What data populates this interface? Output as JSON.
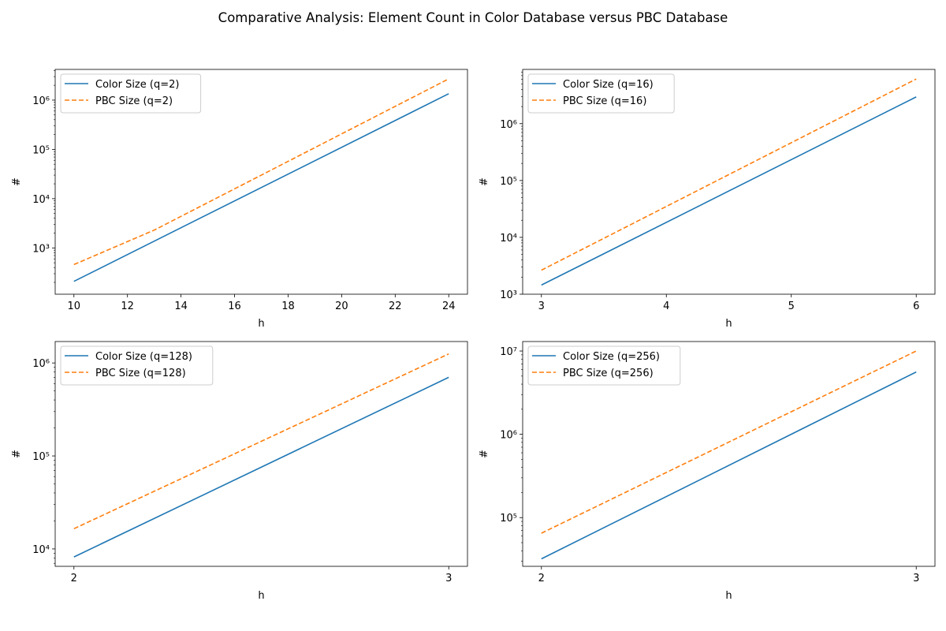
{
  "figure": {
    "title": "Comparative Analysis: Element Count in Color Database versus PBC Database"
  },
  "colors": {
    "color_series": "#1f77b4",
    "pbc_series": "#ff7f0e"
  },
  "chart_data": [
    {
      "type": "line",
      "xlabel": "h",
      "ylabel": "#",
      "yscale": "log",
      "xlim": [
        9.3,
        24.7
      ],
      "ylim": [
        115,
        4200000
      ],
      "xticks": [
        10,
        12,
        14,
        16,
        18,
        20,
        22,
        24
      ],
      "xtick_labels": [
        "10",
        "12",
        "14",
        "16",
        "18",
        "20",
        "22",
        "24"
      ],
      "yticks": [
        1000,
        10000,
        100000,
        1000000
      ],
      "ytick_labels": [
        "10³",
        "10⁴",
        "10⁵",
        "10⁶"
      ],
      "grid": false,
      "legend_position": "top-left",
      "series": [
        {
          "name": "Color Size (q=2)",
          "style": "solid",
          "x": [
            10,
            24
          ],
          "y": [
            210,
            1350000
          ]
        },
        {
          "name": "PBC Size (q=2)",
          "style": "dashed",
          "x": [
            10,
            13,
            24
          ],
          "y": [
            460,
            2300,
            2700000
          ]
        }
      ]
    },
    {
      "type": "line",
      "xlabel": "h",
      "ylabel": "#",
      "yscale": "log",
      "xlim": [
        2.85,
        6.15
      ],
      "ylim": [
        1000,
        9000000
      ],
      "xticks": [
        3,
        4,
        5,
        6
      ],
      "xtick_labels": [
        "3",
        "4",
        "5",
        "6"
      ],
      "yticks": [
        1000,
        10000,
        100000,
        1000000
      ],
      "ytick_labels": [
        "10³",
        "10⁴",
        "10⁵",
        "10⁶"
      ],
      "grid": false,
      "legend_position": "top-left",
      "series": [
        {
          "name": "Color Size (q=16)",
          "style": "solid",
          "x": [
            3,
            6
          ],
          "y": [
            1450,
            2950000
          ]
        },
        {
          "name": "PBC Size (q=16)",
          "style": "dashed",
          "x": [
            3,
            6
          ],
          "y": [
            2650,
            6100000
          ]
        }
      ]
    },
    {
      "type": "line",
      "xlabel": "h",
      "ylabel": "#",
      "yscale": "log",
      "xlim": [
        1.95,
        3.05
      ],
      "ylim": [
        6500,
        1700000
      ],
      "xticks": [
        2,
        3
      ],
      "xtick_labels": [
        "2",
        "3"
      ],
      "yticks": [
        10000,
        100000,
        1000000
      ],
      "ytick_labels": [
        "10⁴",
        "10⁵",
        "10⁶"
      ],
      "grid": false,
      "legend_position": "top-left",
      "series": [
        {
          "name": "Color Size (q=128)",
          "style": "solid",
          "x": [
            2,
            3
          ],
          "y": [
            8200,
            700000
          ]
        },
        {
          "name": "PBC Size (q=128)",
          "style": "dashed",
          "x": [
            2,
            3
          ],
          "y": [
            16500,
            1250000
          ]
        }
      ]
    },
    {
      "type": "line",
      "xlabel": "h",
      "ylabel": "#",
      "yscale": "log",
      "xlim": [
        1.95,
        3.05
      ],
      "ylim": [
        26000,
        13000000
      ],
      "xticks": [
        2,
        3
      ],
      "xtick_labels": [
        "2",
        "3"
      ],
      "yticks": [
        100000,
        1000000,
        10000000
      ],
      "ytick_labels": [
        "10⁵",
        "10⁶",
        "10⁷"
      ],
      "grid": false,
      "legend_position": "top-left",
      "series": [
        {
          "name": "Color Size (q=256)",
          "style": "solid",
          "x": [
            2,
            3
          ],
          "y": [
            32000,
            5600000
          ]
        },
        {
          "name": "PBC Size (q=256)",
          "style": "dashed",
          "x": [
            2,
            3
          ],
          "y": [
            65000,
            10000000
          ]
        }
      ]
    }
  ]
}
